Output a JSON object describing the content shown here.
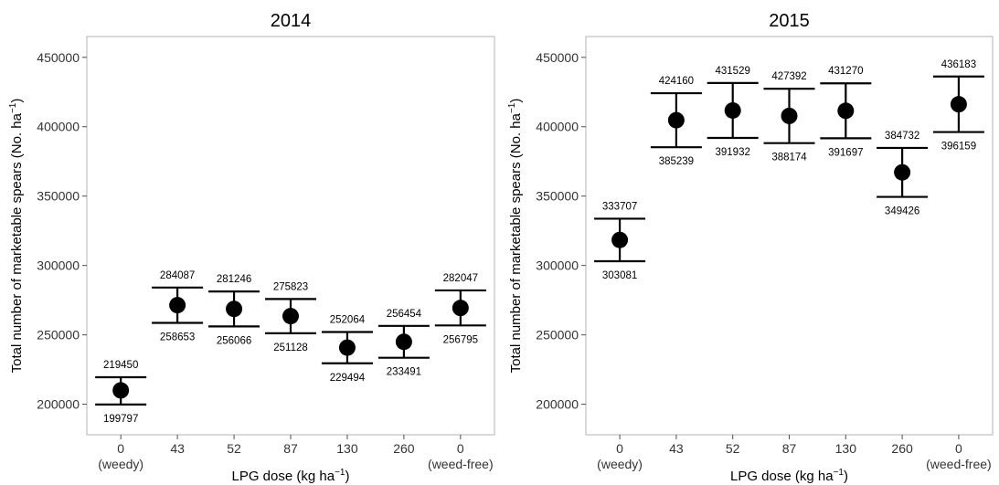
{
  "chart_data": [
    {
      "type": "scatter",
      "title": "2014",
      "xlabel": "LPG dose (kg ha⁻¹)",
      "ylabel": "Total number of marketable spears (No. ha⁻¹)",
      "categories": [
        [
          "0",
          "(weedy)"
        ],
        [
          "43"
        ],
        [
          "52"
        ],
        [
          "87"
        ],
        [
          "130"
        ],
        [
          "260"
        ],
        [
          "0",
          "(weed-free)"
        ]
      ],
      "values": [
        210000,
        271400,
        268700,
        263500,
        240800,
        245000,
        269400
      ],
      "upper": [
        219450,
        284087,
        281246,
        275823,
        252064,
        256454,
        282047
      ],
      "lower": [
        199797,
        258653,
        256066,
        251128,
        229494,
        233491,
        256795
      ],
      "ylim": [
        178000,
        465000
      ],
      "yticks": [
        200000,
        250000,
        300000,
        350000,
        400000,
        450000
      ],
      "grid": false
    },
    {
      "type": "scatter",
      "title": "2015",
      "xlabel": "LPG dose (kg ha⁻¹)",
      "ylabel": "Total number of marketable spears (No. ha⁻¹)",
      "categories": [
        [
          "0",
          "(weedy)"
        ],
        [
          "43"
        ],
        [
          "52"
        ],
        [
          "87"
        ],
        [
          "130"
        ],
        [
          "260"
        ],
        [
          "0",
          "(weed-free)"
        ]
      ],
      "values": [
        318400,
        404700,
        411700,
        407800,
        411500,
        367100,
        416200
      ],
      "upper": [
        333707,
        424160,
        431529,
        427392,
        431270,
        384732,
        436183
      ],
      "lower": [
        303081,
        385239,
        391932,
        388174,
        391697,
        349426,
        396159
      ],
      "ylim": [
        178000,
        465000
      ],
      "yticks": [
        200000,
        250000,
        300000,
        350000,
        400000,
        450000
      ],
      "grid": false
    }
  ]
}
